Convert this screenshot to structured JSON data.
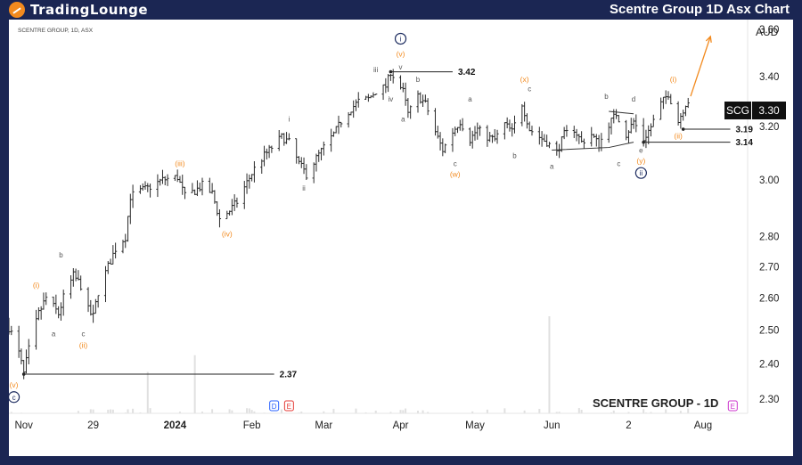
{
  "header": {
    "logo_text": "TradingLounge",
    "title": "Scentre Group 1D Asx Chart"
  },
  "chart_data": {
    "type": "ohlc",
    "symbol_line": "SCENTRE GROUP, 1D, ASX",
    "watermark": "SCENTRE GROUP - 1D",
    "currency": "AUD",
    "ticker": "SCG",
    "last_price": "3.30",
    "y_scale": "log",
    "ylim": [
      2.26,
      3.62
    ],
    "y_ticks": [
      "3.60",
      "3.40",
      "3.20",
      "3.00",
      "2.80",
      "2.70",
      "2.60",
      "2.50",
      "2.40",
      "2.30"
    ],
    "x_ticks": [
      {
        "label": "Nov",
        "date": "2023-11-01"
      },
      {
        "label": "29",
        "date": "2023-11-29"
      },
      {
        "label": "2024",
        "date": "2024-01-01"
      },
      {
        "label": "Feb",
        "date": "2024-02-01"
      },
      {
        "label": "Mar",
        "date": "2024-03-01"
      },
      {
        "label": "Apr",
        "date": "2024-04-01"
      },
      {
        "label": "May",
        "date": "2024-05-01"
      },
      {
        "label": "Jun",
        "date": "2024-06-01"
      },
      {
        "label": "2",
        "date": "2024-07-02"
      },
      {
        "label": "Aug",
        "date": "2024-08-01"
      }
    ],
    "x_range": [
      "2023-10-26",
      "2024-08-19"
    ],
    "price_path": [
      [
        "2023-10-26",
        2.51
      ],
      [
        "2023-10-30",
        2.43
      ],
      [
        "2023-11-01",
        2.37
      ],
      [
        "2023-11-03",
        2.44
      ],
      [
        "2023-11-07",
        2.55
      ],
      [
        "2023-11-10",
        2.6
      ],
      [
        "2023-11-13",
        2.57
      ],
      [
        "2023-11-15",
        2.55
      ],
      [
        "2023-11-17",
        2.6
      ],
      [
        "2023-11-21",
        2.67
      ],
      [
        "2023-11-24",
        2.64
      ],
      [
        "2023-11-27",
        2.56
      ],
      [
        "2023-11-29",
        2.54
      ],
      [
        "2023-12-01",
        2.62
      ],
      [
        "2023-12-05",
        2.7
      ],
      [
        "2023-12-08",
        2.76
      ],
      [
        "2023-12-12",
        2.8
      ],
      [
        "2023-12-14",
        2.94
      ],
      [
        "2023-12-18",
        2.96
      ],
      [
        "2023-12-21",
        2.97
      ],
      [
        "2023-12-27",
        3.0
      ],
      [
        "2024-01-02",
        3.01
      ],
      [
        "2024-01-05",
        2.94
      ],
      [
        "2024-01-09",
        2.96
      ],
      [
        "2024-01-12",
        2.98
      ],
      [
        "2024-01-16",
        2.95
      ],
      [
        "2024-01-19",
        2.86
      ],
      [
        "2024-01-23",
        2.89
      ],
      [
        "2024-01-26",
        2.92
      ],
      [
        "2024-01-30",
        2.99
      ],
      [
        "2024-02-02",
        3.04
      ],
      [
        "2024-02-06",
        3.09
      ],
      [
        "2024-02-09",
        3.12
      ],
      [
        "2024-02-13",
        3.16
      ],
      [
        "2024-02-16",
        3.14
      ],
      [
        "2024-02-20",
        3.06
      ],
      [
        "2024-02-23",
        3.02
      ],
      [
        "2024-02-27",
        3.08
      ],
      [
        "2024-03-01",
        3.12
      ],
      [
        "2024-03-05",
        3.17
      ],
      [
        "2024-03-08",
        3.22
      ],
      [
        "2024-03-12",
        3.27
      ],
      [
        "2024-03-15",
        3.3
      ],
      [
        "2024-03-19",
        3.31
      ],
      [
        "2024-03-22",
        3.34
      ],
      [
        "2024-03-26",
        3.36
      ],
      [
        "2024-03-28",
        3.42
      ],
      [
        "2024-04-02",
        3.34
      ],
      [
        "2024-04-04",
        3.25
      ],
      [
        "2024-04-08",
        3.32
      ],
      [
        "2024-04-11",
        3.29
      ],
      [
        "2024-04-15",
        3.18
      ],
      [
        "2024-04-18",
        3.11
      ],
      [
        "2024-04-22",
        3.18
      ],
      [
        "2024-04-25",
        3.22
      ],
      [
        "2024-04-29",
        3.15
      ],
      [
        "2024-05-02",
        3.19
      ],
      [
        "2024-05-06",
        3.16
      ],
      [
        "2024-05-09",
        3.15
      ],
      [
        "2024-05-13",
        3.21
      ],
      [
        "2024-05-16",
        3.18
      ],
      [
        "2024-05-20",
        3.29
      ],
      [
        "2024-05-23",
        3.19
      ],
      [
        "2024-05-27",
        3.16
      ],
      [
        "2024-05-30",
        3.14
      ],
      [
        "2024-06-03",
        3.1
      ],
      [
        "2024-06-06",
        3.17
      ],
      [
        "2024-06-10",
        3.19
      ],
      [
        "2024-06-13",
        3.14
      ],
      [
        "2024-06-17",
        3.17
      ],
      [
        "2024-06-20",
        3.13
      ],
      [
        "2024-06-24",
        3.21
      ],
      [
        "2024-06-27",
        3.25
      ],
      [
        "2024-07-01",
        3.17
      ],
      [
        "2024-07-04",
        3.22
      ],
      [
        "2024-07-08",
        3.15
      ],
      [
        "2024-07-11",
        3.2
      ],
      [
        "2024-07-15",
        3.29
      ],
      [
        "2024-07-18",
        3.33
      ],
      [
        "2024-07-22",
        3.22
      ],
      [
        "2024-07-25",
        3.29
      ],
      [
        "2024-07-26",
        3.3
      ]
    ],
    "volume_spikes": [
      [
        "2023-12-21",
        0.5
      ],
      [
        "2024-01-09",
        0.65
      ],
      [
        "2024-05-31",
        1.0
      ]
    ],
    "levels": [
      {
        "label": "2.37",
        "value": 2.37,
        "from": "2023-11-01",
        "to": "2024-02-10"
      },
      {
        "label": "3.42",
        "value": 3.42,
        "from": "2024-03-28",
        "to": "2024-04-22"
      },
      {
        "label": "3.19",
        "value": 3.19,
        "from": "2024-07-24",
        "to": "2024-08-12"
      },
      {
        "label": "3.14",
        "value": 3.14,
        "from": "2024-07-08",
        "to": "2024-08-12"
      }
    ],
    "wave_labels": [
      {
        "text": "c",
        "date": "2023-10-28",
        "price": 2.305,
        "color": "#1b2a5e",
        "style": "circle-dark"
      },
      {
        "text": "(v)",
        "date": "2023-10-28",
        "price": 2.34,
        "color": "#f28a1e"
      },
      {
        "text": "(i)",
        "date": "2023-11-06",
        "price": 2.64,
        "color": "#f28a1e"
      },
      {
        "text": "a",
        "date": "2023-11-13",
        "price": 2.49,
        "color": "#555555"
      },
      {
        "text": "b",
        "date": "2023-11-16",
        "price": 2.74,
        "color": "#555555"
      },
      {
        "text": "c",
        "date": "2023-11-25",
        "price": 2.49,
        "color": "#555555"
      },
      {
        "text": "(ii)",
        "date": "2023-11-25",
        "price": 2.455,
        "color": "#f28a1e"
      },
      {
        "text": "(iii)",
        "date": "2024-01-03",
        "price": 3.06,
        "color": "#f28a1e"
      },
      {
        "text": "(iv)",
        "date": "2024-01-22",
        "price": 2.81,
        "color": "#f28a1e"
      },
      {
        "text": "i",
        "date": "2024-02-16",
        "price": 3.23,
        "color": "#555555"
      },
      {
        "text": "ii",
        "date": "2024-02-22",
        "price": 2.97,
        "color": "#555555"
      },
      {
        "text": "iii",
        "date": "2024-03-22",
        "price": 3.43,
        "color": "#555555"
      },
      {
        "text": "iv",
        "date": "2024-03-28",
        "price": 3.31,
        "color": "#555555"
      },
      {
        "text": "v",
        "date": "2024-04-01",
        "price": 3.44,
        "color": "#555555"
      },
      {
        "text": "(v)",
        "date": "2024-04-01",
        "price": 3.495,
        "color": "#f28a1e"
      },
      {
        "text": "i",
        "date": "2024-04-01",
        "price": 3.56,
        "color": "#1b2a5e",
        "style": "circle-dark"
      },
      {
        "text": "b",
        "date": "2024-04-08",
        "price": 3.39,
        "color": "#555555"
      },
      {
        "text": "a",
        "date": "2024-04-02",
        "price": 3.23,
        "color": "#555555"
      },
      {
        "text": "c",
        "date": "2024-04-23",
        "price": 3.06,
        "color": "#555555"
      },
      {
        "text": "(w)",
        "date": "2024-04-23",
        "price": 3.02,
        "color": "#f28a1e"
      },
      {
        "text": "a",
        "date": "2024-04-29",
        "price": 3.31,
        "color": "#555555"
      },
      {
        "text": "b",
        "date": "2024-05-17",
        "price": 3.09,
        "color": "#555555"
      },
      {
        "text": "c",
        "date": "2024-05-23",
        "price": 3.35,
        "color": "#555555"
      },
      {
        "text": "(x)",
        "date": "2024-05-21",
        "price": 3.39,
        "color": "#f28a1e"
      },
      {
        "text": "a",
        "date": "2024-06-01",
        "price": 3.05,
        "color": "#555555"
      },
      {
        "text": "b",
        "date": "2024-06-23",
        "price": 3.32,
        "color": "#555555"
      },
      {
        "text": "c",
        "date": "2024-06-28",
        "price": 3.06,
        "color": "#555555"
      },
      {
        "text": "d",
        "date": "2024-07-04",
        "price": 3.31,
        "color": "#555555"
      },
      {
        "text": "e",
        "date": "2024-07-07",
        "price": 3.11,
        "color": "#555555"
      },
      {
        "text": "(y)",
        "date": "2024-07-07",
        "price": 3.07,
        "color": "#f28a1e"
      },
      {
        "text": "ii",
        "date": "2024-07-07",
        "price": 3.025,
        "color": "#1b2a5e",
        "style": "circle-dark"
      },
      {
        "text": "(i)",
        "date": "2024-07-20",
        "price": 3.39,
        "color": "#f28a1e"
      },
      {
        "text": "(ii)",
        "date": "2024-07-22",
        "price": 3.165,
        "color": "#f28a1e"
      }
    ],
    "projection": {
      "from": [
        "2024-07-27",
        3.32
      ],
      "to": [
        "2024-08-04",
        3.57
      ],
      "color": "#f28a1e"
    },
    "triangle": [
      [
        [
          "2024-06-01",
          3.11
        ],
        [
          "2024-06-24",
          3.12
        ],
        [
          "2024-07-04",
          3.14
        ]
      ],
      [
        [
          "2024-06-24",
          3.26
        ],
        [
          "2024-07-04",
          3.25
        ]
      ]
    ],
    "event_badges": [
      {
        "text": "D",
        "date": "2024-02-10",
        "bg": "#ffffff",
        "fg": "#2962ff"
      },
      {
        "text": "E",
        "date": "2024-02-16",
        "bg": "#ffffff",
        "fg": "#e53935"
      },
      {
        "text": "E",
        "date": "2024-08-13",
        "bg": "#ffffff",
        "fg": "#cc33cc"
      }
    ],
    "colors": {
      "bars": "#2a2a2a",
      "levels": "#222222",
      "orange": "#f28a1e",
      "price_tag": "#111111",
      "volume": "#e0e0e0"
    }
  }
}
